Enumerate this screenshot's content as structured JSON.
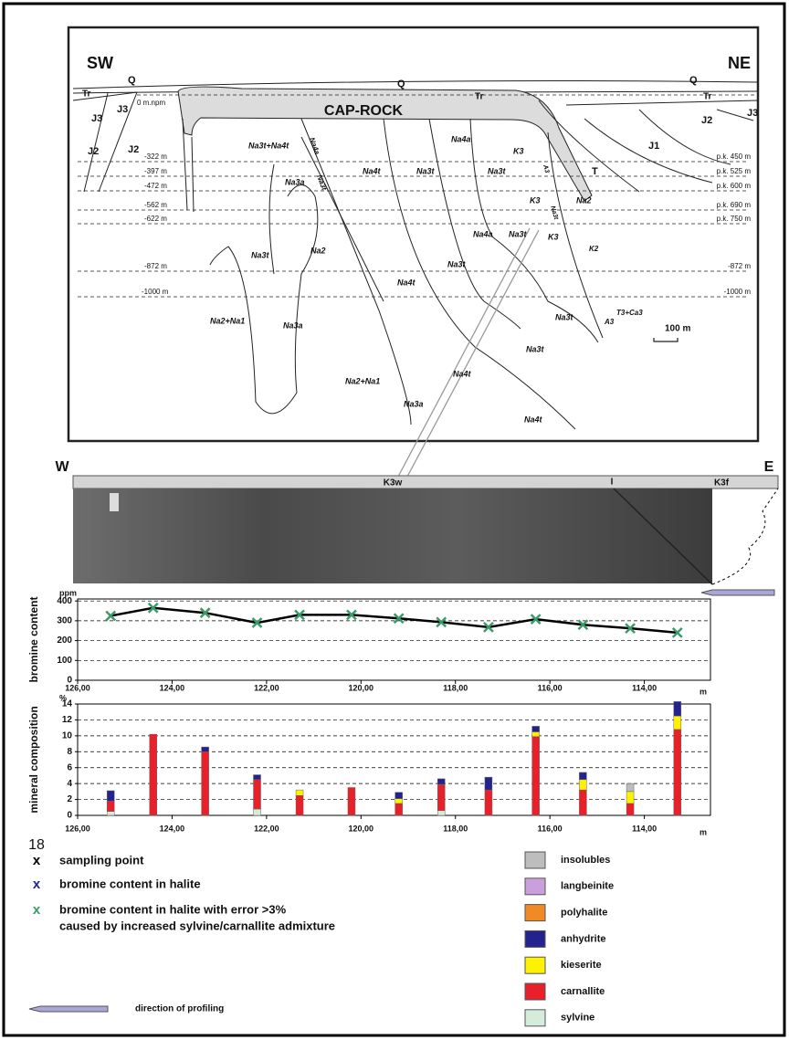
{
  "cross_section": {
    "labels": [
      "SW",
      "NE",
      "Q",
      "Q",
      "Q",
      "Tr",
      "Tr",
      "Tr",
      "J3",
      "J3",
      "J2",
      "J2",
      "J3",
      "J2",
      "J1",
      "T",
      "0 m.npm",
      "CAP-ROCK",
      "-322 m",
      "-397 m",
      "-472 m",
      "-562 m",
      "-622 m",
      "-872 m",
      "-1000 m",
      "p.k. 450 m",
      "p.k. 525 m",
      "p.k. 600 m",
      "p.k. 690 m",
      "p.k. 750 m",
      "-872 m",
      "-1000 m",
      "Na3t+Na4t",
      "Na4a",
      "Na4t",
      "Na3t",
      "Na4a",
      "K3",
      "Na3t",
      "Na3a",
      "Na3t",
      "K3",
      "Na2",
      "Na4a",
      "Na3t",
      "K3",
      "Na3t",
      "Na2",
      "K2",
      "Na3t",
      "Na4t",
      "T3+Ca3",
      "A3",
      "Na3t",
      "Na2+Na1",
      "Na3a",
      "Na3t",
      "Na4t",
      "Na2+Na1",
      "Na3a",
      "Na4t",
      "100 m",
      "A3",
      "Na3t"
    ]
  },
  "photo_strip": {
    "west": "W",
    "east": "E",
    "left_unit": "K3w",
    "marker": "I",
    "right_unit": "K3f"
  },
  "chart_data": [
    {
      "type": "line",
      "y_label": "bromine content",
      "y_unit": "ppm",
      "x_unit": "m",
      "x": [
        125.3,
        124.4,
        123.3,
        122.2,
        121.3,
        120.2,
        119.2,
        118.3,
        117.3,
        116.3,
        115.3,
        114.3,
        113.3
      ],
      "values": [
        325,
        365,
        340,
        290,
        330,
        330,
        312,
        293,
        268,
        308,
        280,
        262,
        240
      ],
      "color": "#000000",
      "marker_color": "#3a9a6a",
      "xlim": [
        126,
        112.6
      ],
      "xticks": [
        {
          "value": 126,
          "label": "126,00"
        },
        {
          "value": 124,
          "label": "124,00"
        },
        {
          "value": 122,
          "label": "122,00"
        },
        {
          "value": 120,
          "label": "120,00"
        },
        {
          "value": 118,
          "label": "118,00"
        },
        {
          "value": 116,
          "label": "116,00"
        },
        {
          "value": 114,
          "label": "114,00"
        }
      ],
      "ylim": [
        0,
        410
      ],
      "yticks": [
        0,
        100,
        200,
        300,
        400
      ],
      "grid": true
    },
    {
      "type": "bar",
      "stacked": true,
      "y_label": "mineral composition",
      "y_unit": "%",
      "x_unit": "m",
      "x": [
        125.3,
        124.4,
        123.3,
        122.2,
        121.3,
        120.2,
        119.2,
        118.3,
        117.3,
        116.3,
        115.3,
        114.3,
        113.3
      ],
      "series": [
        {
          "name": "sylvine",
          "color": "#d4ecd9",
          "values": [
            0.5,
            0,
            0,
            0.8,
            0,
            0,
            0,
            0.6,
            0,
            0,
            0,
            0,
            0
          ]
        },
        {
          "name": "carnallite",
          "color": "#e8202a",
          "values": [
            1.3,
            10.2,
            8,
            3.7,
            2.5,
            3.5,
            1.5,
            3.3,
            3.2,
            9.9,
            3.2,
            1.5,
            10.8
          ]
        },
        {
          "name": "kieserite",
          "color": "#fff200",
          "values": [
            0,
            0,
            0,
            0,
            0.7,
            0,
            0.6,
            0,
            0,
            0.6,
            1.3,
            1.5,
            1.7
          ]
        },
        {
          "name": "anhydrite",
          "color": "#23238f",
          "values": [
            1.3,
            0,
            0.6,
            0.6,
            0,
            0,
            0.8,
            0.7,
            1.6,
            0.7,
            0.9,
            0,
            1.8
          ]
        },
        {
          "name": "polyhalite",
          "color": "#f08a24",
          "values": [
            0,
            0,
            0,
            0,
            0,
            0,
            0,
            0,
            0,
            0,
            0,
            0,
            0
          ]
        },
        {
          "name": "langbeinite",
          "color": "#c9a0dc",
          "values": [
            0,
            0,
            0,
            0,
            0,
            0,
            0,
            0,
            0,
            0,
            0,
            0,
            0
          ]
        },
        {
          "name": "insolubles",
          "color": "#bdbdbd",
          "values": [
            0,
            0,
            0,
            0,
            0,
            0,
            0,
            0,
            0,
            0,
            0,
            1,
            0
          ]
        }
      ],
      "xlim": [
        126,
        112.6
      ],
      "xticks": [
        {
          "value": 126,
          "label": "126,00"
        },
        {
          "value": 124,
          "label": "124,00"
        },
        {
          "value": 122,
          "label": "122,00"
        },
        {
          "value": 120,
          "label": "120,00"
        },
        {
          "value": 118,
          "label": "118,00"
        },
        {
          "value": 116,
          "label": "116,00"
        },
        {
          "value": 114,
          "label": "114,00"
        }
      ],
      "ylim": [
        0,
        14
      ],
      "yticks": [
        0,
        2,
        4,
        6,
        8,
        10,
        12,
        14
      ],
      "grid": true
    }
  ],
  "legend": {
    "page_number": "18",
    "items": [
      {
        "symbol": "x",
        "color": "#000000",
        "text": "sampling point"
      },
      {
        "symbol": "x",
        "color": "#23238f",
        "text": "bromine content in halite"
      },
      {
        "symbol": "x",
        "color": "#3a9a6a",
        "text": "bromine content in halite with error >3%"
      }
    ],
    "note": "caused by increased sylvine/carnallite admixture",
    "direction": "direction of profiling"
  }
}
